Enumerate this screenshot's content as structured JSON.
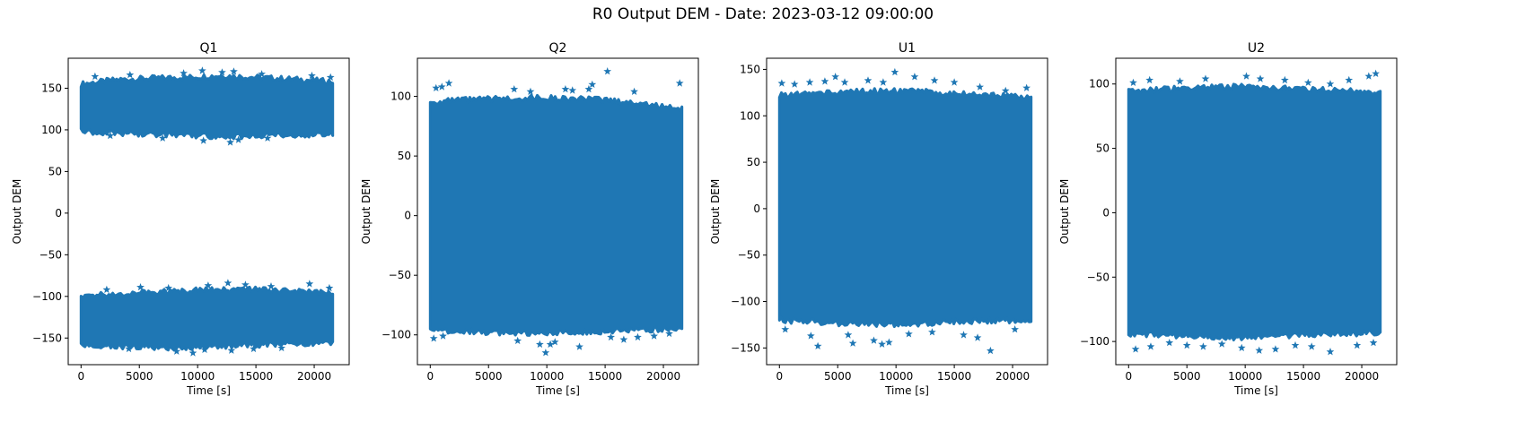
{
  "figure": {
    "title": "R0 Output DEM - Date: 2023-03-12 09:00:00"
  },
  "chart_data": [
    {
      "type": "scatter",
      "title": "Q1",
      "xlabel": "Time [s]",
      "ylabel": "Output DEM",
      "marker": "star",
      "color": "#1f77b4",
      "xlim": [
        -1100,
        23000
      ],
      "ylim": [
        -182,
        186
      ],
      "x_ticks": [
        0,
        5000,
        10000,
        15000,
        20000
      ],
      "x_tick_labels": [
        "0",
        "5000",
        "10000",
        "15000",
        "20000"
      ],
      "y_ticks": [
        -150,
        -100,
        -50,
        0,
        50,
        100,
        150
      ],
      "y_tick_labels": [
        "−150",
        "−100",
        "−50",
        "0",
        "50",
        "100",
        "150"
      ],
      "x_range": [
        0,
        21600
      ],
      "bands": [
        {
          "lower": [
            [
              0,
              98
            ],
            [
              3000,
              96
            ],
            [
              6000,
              95
            ],
            [
              9000,
              94
            ],
            [
              12000,
              92
            ],
            [
              15000,
              93
            ],
            [
              18000,
              94
            ],
            [
              21600,
              95
            ]
          ],
          "upper": [
            [
              0,
              155
            ],
            [
              3000,
              160
            ],
            [
              6000,
              162
            ],
            [
              9000,
              163
            ],
            [
              12000,
              165
            ],
            [
              15000,
              163
            ],
            [
              18000,
              161
            ],
            [
              21600,
              158
            ]
          ]
        },
        {
          "lower": [
            [
              0,
              -158
            ],
            [
              3000,
              -160
            ],
            [
              6000,
              -161
            ],
            [
              9000,
              -162
            ],
            [
              12000,
              -160
            ],
            [
              15000,
              -158
            ],
            [
              18000,
              -157
            ],
            [
              21600,
              -156
            ]
          ],
          "upper": [
            [
              0,
              -100
            ],
            [
              3000,
              -97
            ],
            [
              6000,
              -95
            ],
            [
              9000,
              -93
            ],
            [
              12000,
              -91
            ],
            [
              15000,
              -92
            ],
            [
              18000,
              -94
            ],
            [
              21600,
              -95
            ]
          ]
        }
      ],
      "outliers": [
        [
          2500,
          93
        ],
        [
          7000,
          90
        ],
        [
          10500,
          87
        ],
        [
          12800,
          85
        ],
        [
          13500,
          88
        ],
        [
          16000,
          90
        ],
        [
          1200,
          164
        ],
        [
          4200,
          166
        ],
        [
          8800,
          168
        ],
        [
          10400,
          171
        ],
        [
          12100,
          169
        ],
        [
          13100,
          170
        ],
        [
          15500,
          167
        ],
        [
          19800,
          165
        ],
        [
          21400,
          163
        ],
        [
          2200,
          -92
        ],
        [
          5100,
          -89
        ],
        [
          7500,
          -90
        ],
        [
          10900,
          -87
        ],
        [
          12600,
          -84
        ],
        [
          14100,
          -86
        ],
        [
          16300,
          -88
        ],
        [
          19600,
          -85
        ],
        [
          21300,
          -90
        ],
        [
          8200,
          -166
        ],
        [
          9600,
          -168
        ],
        [
          10600,
          -164
        ],
        [
          12900,
          -165
        ],
        [
          14800,
          -163
        ],
        [
          17200,
          -162
        ],
        [
          4100,
          -163
        ]
      ]
    },
    {
      "type": "scatter",
      "title": "Q2",
      "xlabel": "Time [s]",
      "ylabel": "Output DEM",
      "marker": "star",
      "color": "#1f77b4",
      "xlim": [
        -1100,
        23000
      ],
      "ylim": [
        -125,
        132
      ],
      "x_ticks": [
        0,
        5000,
        10000,
        15000,
        20000
      ],
      "x_tick_labels": [
        "0",
        "5000",
        "10000",
        "15000",
        "20000"
      ],
      "y_ticks": [
        -100,
        -50,
        0,
        50,
        100
      ],
      "y_tick_labels": [
        "−100",
        "−50",
        "0",
        "50",
        "100"
      ],
      "x_range": [
        0,
        21600
      ],
      "bands": [
        {
          "lower": [
            [
              0,
              -96
            ],
            [
              3000,
              -97
            ],
            [
              6000,
              -98
            ],
            [
              9000,
              -99
            ],
            [
              12000,
              -98
            ],
            [
              15000,
              -97
            ],
            [
              18000,
              -96
            ],
            [
              21600,
              -94
            ]
          ],
          "upper": [
            [
              0,
              95
            ],
            [
              3000,
              97
            ],
            [
              6000,
              98
            ],
            [
              9000,
              99
            ],
            [
              12000,
              98
            ],
            [
              15000,
              97
            ],
            [
              18000,
              94
            ],
            [
              21600,
              90
            ]
          ]
        }
      ],
      "outliers": [
        [
          500,
          107
        ],
        [
          1000,
          108
        ],
        [
          1600,
          111
        ],
        [
          7200,
          106
        ],
        [
          8600,
          104
        ],
        [
          11600,
          106
        ],
        [
          12200,
          105
        ],
        [
          13600,
          106
        ],
        [
          13900,
          110
        ],
        [
          15200,
          121
        ],
        [
          17500,
          104
        ],
        [
          21400,
          111
        ],
        [
          300,
          -103
        ],
        [
          1100,
          -101
        ],
        [
          7500,
          -105
        ],
        [
          9400,
          -108
        ],
        [
          9900,
          -115
        ],
        [
          10300,
          -108
        ],
        [
          10700,
          -106
        ],
        [
          12800,
          -110
        ],
        [
          15500,
          -102
        ],
        [
          16600,
          -104
        ],
        [
          17800,
          -102
        ],
        [
          19200,
          -101
        ],
        [
          20500,
          -99
        ]
      ]
    },
    {
      "type": "scatter",
      "title": "U1",
      "xlabel": "Time [s]",
      "ylabel": "Output DEM",
      "marker": "star",
      "color": "#1f77b4",
      "xlim": [
        -1100,
        23000
      ],
      "ylim": [
        -168,
        162
      ],
      "x_ticks": [
        0,
        5000,
        10000,
        15000,
        20000
      ],
      "x_tick_labels": [
        "0",
        "5000",
        "10000",
        "15000",
        "20000"
      ],
      "y_ticks": [
        -150,
        -100,
        -50,
        0,
        50,
        100,
        150
      ],
      "y_tick_labels": [
        "−150",
        "−100",
        "−50",
        "0",
        "50",
        "100",
        "150"
      ],
      "x_range": [
        0,
        21600
      ],
      "bands": [
        {
          "lower": [
            [
              0,
              -120
            ],
            [
              3000,
              -122
            ],
            [
              6000,
              -124
            ],
            [
              9000,
              -125
            ],
            [
              12000,
              -124
            ],
            [
              15000,
              -122
            ],
            [
              18000,
              -121
            ],
            [
              21600,
              -120
            ]
          ],
          "upper": [
            [
              0,
              122
            ],
            [
              3000,
              124
            ],
            [
              6000,
              126
            ],
            [
              9000,
              127
            ],
            [
              12000,
              126
            ],
            [
              15000,
              124
            ],
            [
              18000,
              122
            ],
            [
              21600,
              120
            ]
          ]
        }
      ],
      "outliers": [
        [
          200,
          135
        ],
        [
          1300,
          134
        ],
        [
          2600,
          136
        ],
        [
          3900,
          137
        ],
        [
          4800,
          142
        ],
        [
          5600,
          136
        ],
        [
          7600,
          138
        ],
        [
          8900,
          136
        ],
        [
          9900,
          147
        ],
        [
          11600,
          142
        ],
        [
          13300,
          138
        ],
        [
          15000,
          136
        ],
        [
          17200,
          131
        ],
        [
          19400,
          127
        ],
        [
          21200,
          130
        ],
        [
          500,
          -130
        ],
        [
          2700,
          -137
        ],
        [
          3300,
          -148
        ],
        [
          5900,
          -136
        ],
        [
          6300,
          -145
        ],
        [
          8100,
          -142
        ],
        [
          8800,
          -146
        ],
        [
          9400,
          -144
        ],
        [
          11100,
          -135
        ],
        [
          13100,
          -133
        ],
        [
          15800,
          -136
        ],
        [
          17000,
          -139
        ],
        [
          18100,
          -153
        ],
        [
          20200,
          -130
        ]
      ]
    },
    {
      "type": "scatter",
      "title": "U2",
      "xlabel": "Time [s]",
      "ylabel": "Output DEM",
      "marker": "star",
      "color": "#1f77b4",
      "xlim": [
        -1100,
        23000
      ],
      "ylim": [
        -118,
        120
      ],
      "x_ticks": [
        0,
        5000,
        10000,
        15000,
        20000
      ],
      "x_tick_labels": [
        "0",
        "5000",
        "10000",
        "15000",
        "20000"
      ],
      "y_ticks": [
        -100,
        -50,
        0,
        50,
        100
      ],
      "y_tick_labels": [
        "−100",
        "−50",
        "0",
        "50",
        "100"
      ],
      "x_range": [
        0,
        21600
      ],
      "bands": [
        {
          "lower": [
            [
              0,
              -94
            ],
            [
              3000,
              -95
            ],
            [
              6000,
              -96
            ],
            [
              9000,
              -97
            ],
            [
              12000,
              -96
            ],
            [
              15000,
              -95
            ],
            [
              18000,
              -94
            ],
            [
              21600,
              -93
            ]
          ],
          "upper": [
            [
              0,
              94
            ],
            [
              3000,
              96
            ],
            [
              6000,
              97
            ],
            [
              9000,
              98
            ],
            [
              12000,
              97
            ],
            [
              15000,
              96
            ],
            [
              18000,
              95
            ],
            [
              21600,
              93
            ]
          ]
        }
      ],
      "outliers": [
        [
          400,
          101
        ],
        [
          1800,
          103
        ],
        [
          4400,
          102
        ],
        [
          6600,
          104
        ],
        [
          10100,
          106
        ],
        [
          11300,
          104
        ],
        [
          13400,
          103
        ],
        [
          15400,
          101
        ],
        [
          17300,
          100
        ],
        [
          18900,
          103
        ],
        [
          20600,
          106
        ],
        [
          21200,
          108
        ],
        [
          600,
          -106
        ],
        [
          1900,
          -104
        ],
        [
          3500,
          -101
        ],
        [
          5000,
          -103
        ],
        [
          6400,
          -104
        ],
        [
          8000,
          -102
        ],
        [
          9700,
          -105
        ],
        [
          11200,
          -107
        ],
        [
          12600,
          -106
        ],
        [
          14300,
          -103
        ],
        [
          15700,
          -104
        ],
        [
          17300,
          -108
        ],
        [
          19600,
          -103
        ],
        [
          21000,
          -101
        ]
      ]
    }
  ]
}
